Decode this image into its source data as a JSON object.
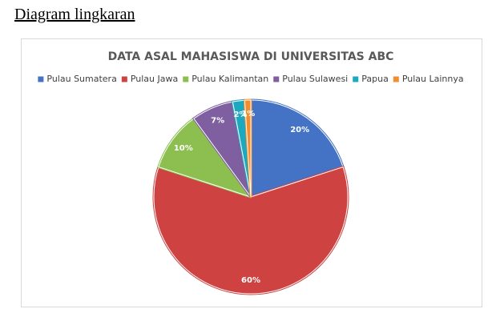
{
  "heading": "Diagram lingkaran",
  "chart_data": {
    "type": "pie",
    "title": "DATA ASAL MAHASISWA DI UNIVERSITAS ABC",
    "categories": [
      "Pulau Sumatera",
      "Pulau Jawa",
      "Pulau Kalimantan",
      "Pulau Sulawesi",
      "Papua",
      "Pulau Lainnya"
    ],
    "values": [
      20,
      60,
      10,
      7,
      2,
      1
    ],
    "value_labels": [
      "20%",
      "60%",
      "10%",
      "7%",
      "2%",
      "1%"
    ],
    "colors": [
      "#4472c4",
      "#cf4242",
      "#8cbf50",
      "#7f5fa0",
      "#1ea8c0",
      "#f28e2f"
    ],
    "legend": "top"
  }
}
